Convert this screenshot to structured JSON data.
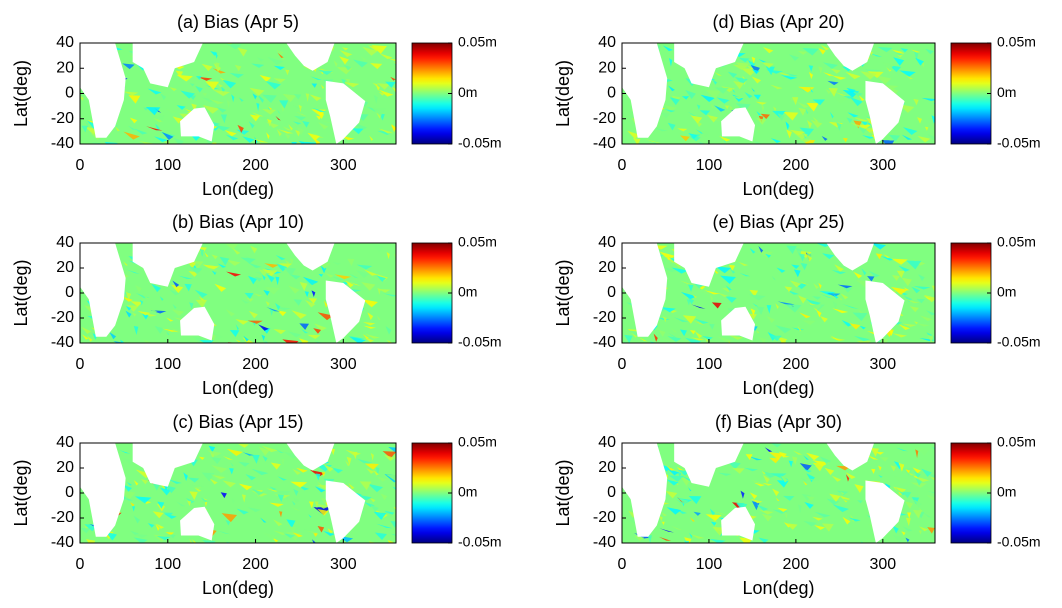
{
  "chart_data": [
    {
      "type": "heatmap",
      "title": "(a) Bias (Apr 5)",
      "xlabel": "Lon(deg)",
      "ylabel": "Lat(deg)",
      "xlim": [
        0,
        360
      ],
      "ylim": [
        -40,
        40
      ],
      "xticks": [
        0,
        100,
        200,
        300
      ],
      "yticks": [
        40,
        20,
        0,
        -20,
        -40
      ],
      "colorbar": {
        "colormap": "jet",
        "lim": [
          -0.05,
          0.05
        ],
        "ticks": [
          {
            "value": 0.05,
            "label": "0.05m"
          },
          {
            "value": 0,
            "label": "0m"
          },
          {
            "value": -0.05,
            "label": "-0.05m"
          }
        ]
      }
    },
    {
      "type": "heatmap",
      "title": "(b) Bias (Apr 10)",
      "xlabel": "Lon(deg)",
      "ylabel": "Lat(deg)",
      "xlim": [
        0,
        360
      ],
      "ylim": [
        -40,
        40
      ],
      "xticks": [
        0,
        100,
        200,
        300
      ],
      "yticks": [
        40,
        20,
        0,
        -20,
        -40
      ],
      "colorbar": {
        "colormap": "jet",
        "lim": [
          -0.05,
          0.05
        ],
        "ticks": [
          {
            "value": 0.05,
            "label": "0.05m"
          },
          {
            "value": 0,
            "label": "0m"
          },
          {
            "value": -0.05,
            "label": "-0.05m"
          }
        ]
      }
    },
    {
      "type": "heatmap",
      "title": "(c) Bias (Apr 15)",
      "xlabel": "Lon(deg)",
      "ylabel": "Lat(deg)",
      "xlim": [
        0,
        360
      ],
      "ylim": [
        -40,
        40
      ],
      "xticks": [
        0,
        100,
        200,
        300
      ],
      "yticks": [
        40,
        20,
        0,
        -20,
        -40
      ],
      "colorbar": {
        "colormap": "jet",
        "lim": [
          -0.05,
          0.05
        ],
        "ticks": [
          {
            "value": 0.05,
            "label": "0.05m"
          },
          {
            "value": 0,
            "label": "0m"
          },
          {
            "value": -0.05,
            "label": "-0.05m"
          }
        ]
      }
    },
    {
      "type": "heatmap",
      "title": "(d) Bias (Apr 20)",
      "xlabel": "Lon(deg)",
      "ylabel": "Lat(deg)",
      "xlim": [
        0,
        360
      ],
      "ylim": [
        -40,
        40
      ],
      "xticks": [
        0,
        100,
        200,
        300
      ],
      "yticks": [
        40,
        20,
        0,
        -20,
        -40
      ],
      "colorbar": {
        "colormap": "jet",
        "lim": [
          -0.05,
          0.05
        ],
        "ticks": [
          {
            "value": 0.05,
            "label": "0.05m"
          },
          {
            "value": 0,
            "label": "0m"
          },
          {
            "value": -0.05,
            "label": "-0.05m"
          }
        ]
      }
    },
    {
      "type": "heatmap",
      "title": "(e) Bias (Apr 25)",
      "xlabel": "Lon(deg)",
      "ylabel": "Lat(deg)",
      "xlim": [
        0,
        360
      ],
      "ylim": [
        -40,
        40
      ],
      "xticks": [
        0,
        100,
        200,
        300
      ],
      "yticks": [
        40,
        20,
        0,
        -20,
        -40
      ],
      "colorbar": {
        "colormap": "jet",
        "lim": [
          -0.05,
          0.05
        ],
        "ticks": [
          {
            "value": 0.05,
            "label": "0.05m"
          },
          {
            "value": 0,
            "label": "0m"
          },
          {
            "value": -0.05,
            "label": "-0.05m"
          }
        ]
      }
    },
    {
      "type": "heatmap",
      "title": "(f) Bias (Apr 30)",
      "xlabel": "Lon(deg)",
      "ylabel": "Lat(deg)",
      "xlim": [
        0,
        360
      ],
      "ylim": [
        -40,
        40
      ],
      "xticks": [
        0,
        100,
        200,
        300
      ],
      "yticks": [
        40,
        20,
        0,
        -20,
        -40
      ],
      "colorbar": {
        "colormap": "jet",
        "lim": [
          -0.05,
          0.05
        ],
        "ticks": [
          {
            "value": 0.05,
            "label": "0.05m"
          },
          {
            "value": 0,
            "label": "0m"
          },
          {
            "value": -0.05,
            "label": "-0.05m"
          }
        ]
      }
    }
  ]
}
